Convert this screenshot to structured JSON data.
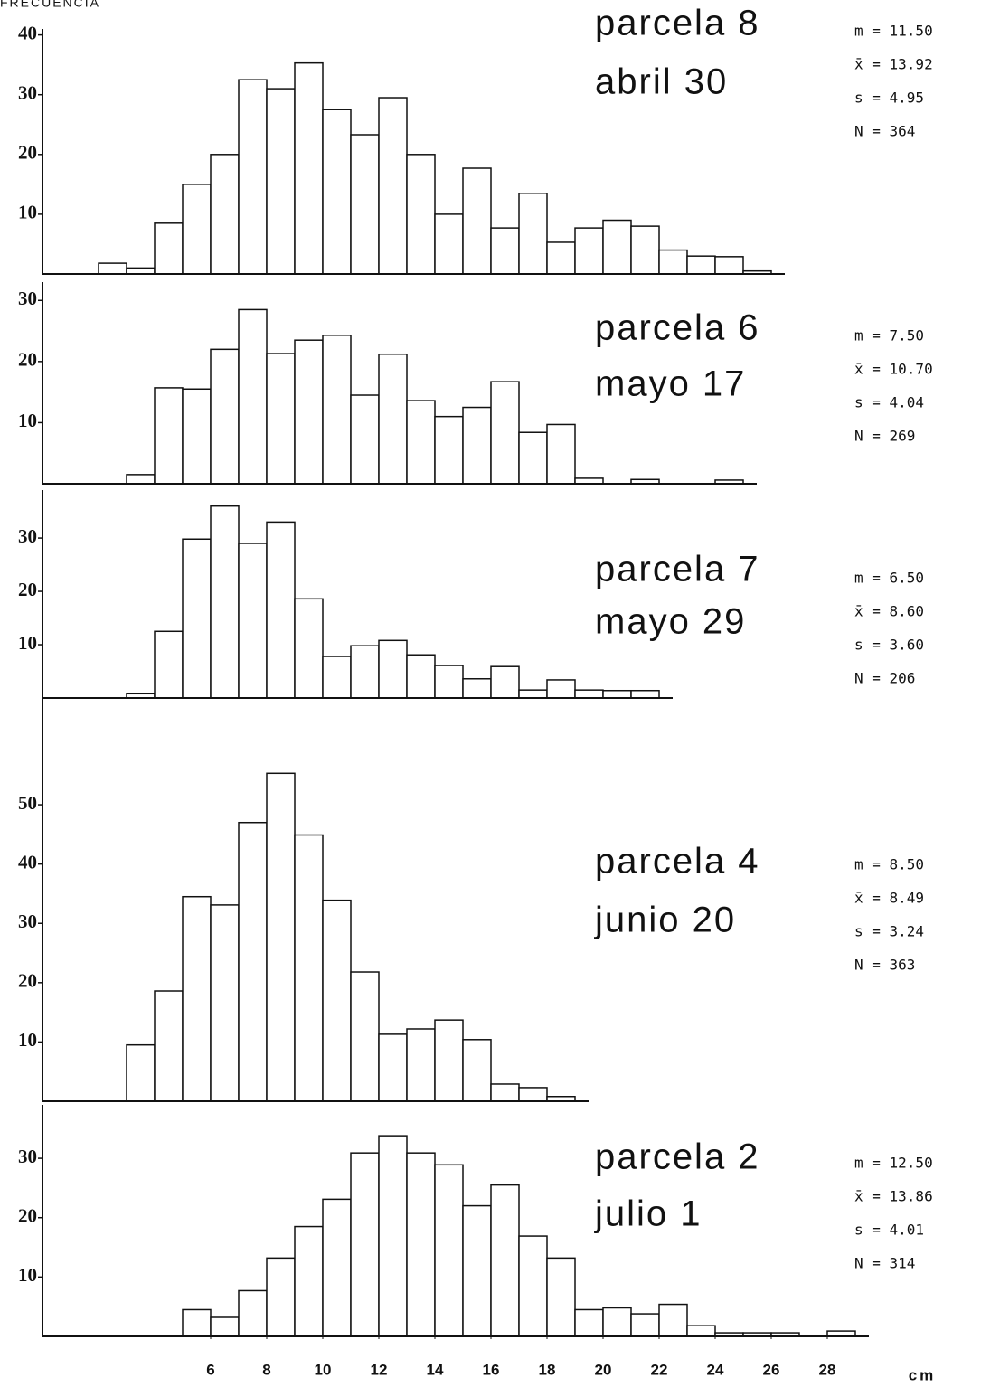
{
  "chart_data": [
    {
      "type": "histogram",
      "ylabel": "FRECUENCIA",
      "title": "parcela 8",
      "subtitle": "abril 30",
      "stats": [
        "m = 11.50",
        "x̄ = 13.92",
        "s = 4.95",
        "N = 364"
      ],
      "bins": [
        2,
        3,
        4,
        5,
        6,
        7,
        8,
        9,
        10,
        11,
        12,
        13,
        14,
        15,
        16,
        17,
        18,
        19,
        20,
        21,
        22,
        23,
        24,
        25,
        26
      ],
      "counts": [
        1.8,
        1,
        8.5,
        15,
        20,
        32.5,
        31,
        35.3,
        27.5,
        23.3,
        29.5,
        20,
        10,
        17.7,
        7.7,
        13.5,
        5.3,
        7.7,
        9,
        8,
        4,
        3,
        2.9,
        0.5
      ],
      "xlim": [
        0,
        30
      ],
      "ylim": [
        0,
        41
      ],
      "yticks": [
        10,
        20,
        30,
        40
      ]
    },
    {
      "type": "histogram",
      "title": "parcela  6",
      "subtitle": "mayo    17",
      "stats": [
        "m = 7.50",
        "x̄ = 10.70",
        "s = 4.04",
        "N = 269"
      ],
      "bins": [
        3,
        4,
        5,
        6,
        7,
        8,
        9,
        10,
        11,
        12,
        13,
        14,
        15,
        16,
        17,
        18,
        19,
        20,
        21,
        22,
        23,
        24,
        25
      ],
      "counts": [
        1.5,
        15.7,
        15.5,
        22,
        28.5,
        21.3,
        23.5,
        24.3,
        14.5,
        21.2,
        13.6,
        11,
        12.5,
        16.7,
        8.4,
        9.7,
        0.9,
        0,
        0.7,
        0,
        0,
        0.6
      ],
      "xlim": [
        0,
        30
      ],
      "ylim": [
        0,
        33
      ],
      "yticks": [
        10,
        20,
        30
      ]
    },
    {
      "type": "histogram",
      "title": "parcela  7",
      "subtitle": "mayo  29",
      "stats": [
        "m = 6.50",
        "x̄ = 8.60",
        "s = 3.60",
        "N = 206"
      ],
      "bins": [
        3,
        4,
        5,
        6,
        7,
        8,
        9,
        10,
        11,
        12,
        13,
        14,
        15,
        16,
        17,
        18,
        19,
        20,
        21,
        22
      ],
      "counts": [
        0.8,
        12.5,
        29.8,
        36,
        29,
        33,
        18.6,
        7.8,
        9.8,
        10.8,
        8.1,
        6.1,
        3.6,
        5.9,
        1.5,
        3.4,
        1.5,
        1.4,
        1.4
      ],
      "xlim": [
        0,
        30
      ],
      "ylim": [
        0,
        39
      ],
      "yticks": [
        10,
        20,
        30
      ]
    },
    {
      "type": "histogram",
      "title": "parcela 4",
      "subtitle": "junio 20",
      "stats": [
        "m = 8.50",
        "x̄ = 8.49",
        "s = 3.24",
        "N = 363"
      ],
      "bins": [
        3,
        4,
        5,
        6,
        7,
        8,
        9,
        10,
        11,
        12,
        13,
        14,
        15,
        16,
        17,
        18,
        19
      ],
      "counts": [
        9.5,
        18.6,
        34.5,
        33.1,
        47,
        55.3,
        44.9,
        33.9,
        21.8,
        11.3,
        12.2,
        13.7,
        10.4,
        2.9,
        2.3,
        0.8
      ],
      "xlim": [
        0,
        30
      ],
      "ylim": [
        0,
        68
      ],
      "yticks": [
        10,
        20,
        30,
        40,
        50
      ]
    },
    {
      "type": "histogram",
      "title": "parcela 2",
      "subtitle": "julio  1",
      "stats": [
        "m = 12.50",
        "x̄ = 13.86",
        "s = 4.01",
        "N = 314"
      ],
      "bins": [
        5,
        6,
        7,
        8,
        9,
        10,
        11,
        12,
        13,
        14,
        15,
        16,
        17,
        18,
        19,
        20,
        21,
        22,
        23,
        24,
        25,
        26,
        27,
        28,
        29
      ],
      "counts": [
        4.5,
        3.2,
        7.7,
        13.2,
        18.5,
        23.1,
        30.9,
        33.8,
        30.9,
        28.9,
        22,
        25.5,
        16.9,
        13.2,
        4.5,
        4.8,
        3.8,
        5.4,
        1.8,
        0.6,
        0.6,
        0.6,
        0,
        0.9
      ],
      "xlim": [
        0,
        30
      ],
      "ylim": [
        0,
        39
      ],
      "yticks": [
        10,
        20,
        30
      ],
      "xticks": [
        6,
        8,
        10,
        12,
        14,
        16,
        18,
        20,
        22,
        24,
        26,
        28
      ],
      "xlabel": "cm"
    }
  ]
}
